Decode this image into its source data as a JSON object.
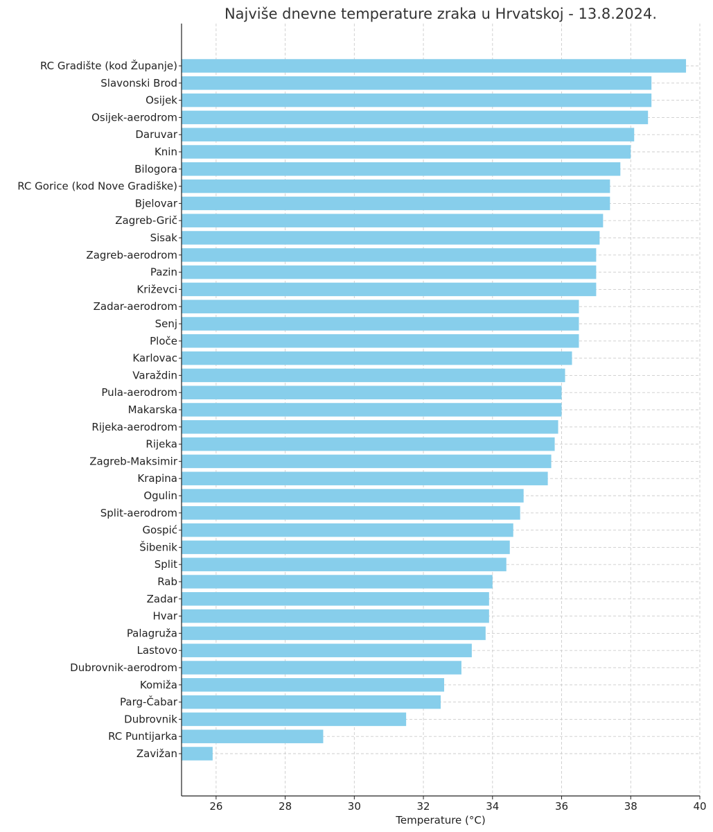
{
  "chart_data": {
    "type": "bar",
    "orientation": "horizontal",
    "title": "Najviše dnevne temperature zraka u Hrvatskoj - 13.8.2024.",
    "xlabel": "Temperature (°C)",
    "ylabel": "",
    "xlim": [
      25,
      40
    ],
    "xticks": [
      26,
      28,
      30,
      32,
      34,
      36,
      38,
      40
    ],
    "grid": true,
    "bar_color": "#87ceeb",
    "categories": [
      "RC Gradište (kod Županje)",
      "Slavonski Brod",
      "Osijek",
      "Osijek-aerodrom",
      "Daruvar",
      "Knin",
      "Bilogora",
      "RC Gorice (kod Nove Gradiške)",
      "Bjelovar",
      "Zagreb-Grič",
      "Sisak",
      "Zagreb-aerodrom",
      "Pazin",
      "Križevci",
      "Zadar-aerodrom",
      "Senj",
      "Ploče",
      "Karlovac",
      "Varaždin",
      "Pula-aerodrom",
      "Makarska",
      "Rijeka-aerodrom",
      "Rijeka",
      "Zagreb-Maksimir",
      "Krapina",
      "Ogulin",
      "Split-aerodrom",
      "Gospić",
      "Šibenik",
      "Split",
      "Rab",
      "Zadar",
      "Hvar",
      "Palagruža",
      "Lastovo",
      "Dubrovnik-aerodrom",
      "Komiža",
      "Parg-Čabar",
      "Dubrovnik",
      "RC Puntijarka",
      "Zavižan"
    ],
    "values": [
      39.6,
      38.6,
      38.6,
      38.5,
      38.1,
      38.0,
      37.7,
      37.4,
      37.4,
      37.2,
      37.1,
      37.0,
      37.0,
      37.0,
      36.5,
      36.5,
      36.5,
      36.3,
      36.1,
      36.0,
      36.0,
      35.9,
      35.8,
      35.7,
      35.6,
      34.9,
      34.8,
      34.6,
      34.5,
      34.4,
      34.0,
      33.9,
      33.9,
      33.8,
      33.4,
      33.1,
      32.6,
      32.5,
      31.5,
      29.1,
      25.9
    ]
  }
}
